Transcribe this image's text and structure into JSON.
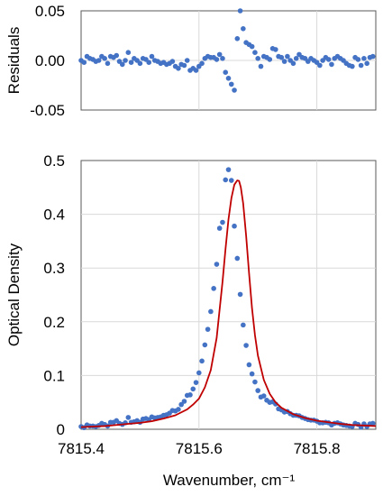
{
  "chart_data": [
    {
      "type": "scatter",
      "panel": "residuals",
      "title": "",
      "xlabel": "",
      "ylabel": "Residuals",
      "xlim": [
        7815.4,
        7815.9
      ],
      "ylim": [
        -0.05,
        0.05
      ],
      "xticks": [
        7815.4,
        7815.6,
        7815.8
      ],
      "yticks": [
        -0.05,
        0.0,
        0.05
      ],
      "ytick_labels": [
        "-0.05",
        "0.00",
        "0.05"
      ],
      "x_tick_labels_shown": false,
      "grid": "vertical",
      "colors": {
        "points": "#4472c4",
        "grid": "#d9d9d9",
        "frame": "#595959"
      },
      "series": [
        {
          "x": [
            7815.4,
            7815.405,
            7815.41,
            7815.415,
            7815.42,
            7815.425,
            7815.43,
            7815.435,
            7815.44,
            7815.445,
            7815.45,
            7815.455,
            7815.46,
            7815.465,
            7815.47,
            7815.475,
            7815.48,
            7815.485,
            7815.49,
            7815.495,
            7815.5,
            7815.505,
            7815.51,
            7815.515,
            7815.52,
            7815.525,
            7815.53,
            7815.535,
            7815.54,
            7815.545,
            7815.55,
            7815.555,
            7815.56,
            7815.565,
            7815.57,
            7815.575,
            7815.58,
            7815.585,
            7815.59,
            7815.595,
            7815.6,
            7815.605,
            7815.61,
            7815.615,
            7815.62,
            7815.625,
            7815.63,
            7815.635,
            7815.64,
            7815.645,
            7815.65,
            7815.655,
            7815.66,
            7815.665,
            7815.67,
            7815.675,
            7815.68,
            7815.685,
            7815.69,
            7815.695,
            7815.7,
            7815.705,
            7815.71,
            7815.715,
            7815.72,
            7815.725,
            7815.73,
            7815.735,
            7815.74,
            7815.745,
            7815.75,
            7815.755,
            7815.76,
            7815.765,
            7815.77,
            7815.775,
            7815.78,
            7815.785,
            7815.79,
            7815.795,
            7815.8,
            7815.805,
            7815.81,
            7815.815,
            7815.82,
            7815.825,
            7815.83,
            7815.835,
            7815.84,
            7815.845,
            7815.85,
            7815.855,
            7815.86,
            7815.865,
            7815.87,
            7815.875,
            7815.88,
            7815.885,
            7815.89,
            7815.895
          ],
          "y": [
            0.0,
            -0.002,
            0.004,
            0.002,
            0.001,
            -0.001,
            0.0,
            0.004,
            0.002,
            -0.003,
            0.004,
            0.003,
            0.005,
            -0.001,
            -0.004,
            0.0,
            0.008,
            -0.002,
            0.002,
            0.0,
            -0.003,
            0.002,
            0.001,
            -0.002,
            0.004,
            0.0,
            -0.001,
            -0.003,
            -0.002,
            -0.004,
            -0.003,
            -0.001,
            -0.006,
            -0.008,
            -0.004,
            -0.005,
            0.0,
            -0.01,
            -0.008,
            -0.01,
            -0.006,
            -0.003,
            0.002,
            0.004,
            0.003,
            0.003,
            0.001,
            0.006,
            0.002,
            -0.012,
            -0.018,
            -0.024,
            -0.03,
            0.022,
            0.05,
            0.032,
            0.018,
            0.016,
            0.014,
            0.008,
            0.002,
            -0.006,
            0.004,
            0.003,
            0.001,
            0.012,
            0.011,
            0.004,
            0.003,
            -0.001,
            0.004,
            0.0,
            -0.003,
            0.002,
            0.006,
            0.003,
            0.002,
            -0.001,
            0.002,
            0.0,
            -0.002,
            -0.005,
            0.0,
            0.003,
            0.001,
            -0.004,
            0.002,
            0.004,
            0.002,
            0.0,
            -0.003,
            -0.005,
            -0.006,
            0.003,
            0.001,
            -0.005,
            0.002,
            -0.003,
            0.003,
            0.004
          ]
        }
      ]
    },
    {
      "type": "scatter",
      "panel": "main",
      "title": "",
      "xlabel": "Wavenumber, cm⁻¹",
      "ylabel": "Optical Density",
      "xlim": [
        7815.4,
        7815.9
      ],
      "ylim": [
        0,
        0.5
      ],
      "xticks": [
        7815.4,
        7815.6,
        7815.8
      ],
      "xtick_labels": [
        "7815.4",
        "7815.6",
        "7815.8"
      ],
      "yticks": [
        0,
        0.1,
        0.2,
        0.3,
        0.4,
        0.5
      ],
      "ytick_labels": [
        "0",
        "0.1",
        "0.2",
        "0.3",
        "0.4",
        "0.5"
      ],
      "grid": "both",
      "colors": {
        "points": "#4472c4",
        "fit": "#c00000",
        "grid": "#d9d9d9",
        "frame": "#595959"
      },
      "series": [
        {
          "kind": "points",
          "x": [
            7815.4,
            7815.405,
            7815.41,
            7815.415,
            7815.42,
            7815.425,
            7815.43,
            7815.435,
            7815.44,
            7815.445,
            7815.45,
            7815.455,
            7815.46,
            7815.465,
            7815.47,
            7815.475,
            7815.48,
            7815.485,
            7815.49,
            7815.495,
            7815.5,
            7815.505,
            7815.51,
            7815.515,
            7815.52,
            7815.525,
            7815.53,
            7815.535,
            7815.54,
            7815.545,
            7815.55,
            7815.555,
            7815.56,
            7815.565,
            7815.57,
            7815.575,
            7815.58,
            7815.585,
            7815.59,
            7815.595,
            7815.6,
            7815.605,
            7815.61,
            7815.615,
            7815.62,
            7815.625,
            7815.63,
            7815.635,
            7815.64,
            7815.645,
            7815.65,
            7815.655,
            7815.66,
            7815.665,
            7815.67,
            7815.675,
            7815.68,
            7815.685,
            7815.69,
            7815.695,
            7815.7,
            7815.705,
            7815.71,
            7815.715,
            7815.72,
            7815.725,
            7815.73,
            7815.735,
            7815.74,
            7815.745,
            7815.75,
            7815.755,
            7815.76,
            7815.765,
            7815.77,
            7815.775,
            7815.78,
            7815.785,
            7815.79,
            7815.795,
            7815.8,
            7815.805,
            7815.81,
            7815.815,
            7815.82,
            7815.825,
            7815.83,
            7815.835,
            7815.84,
            7815.845,
            7815.85,
            7815.855,
            7815.86,
            7815.865,
            7815.87,
            7815.875,
            7815.88,
            7815.885,
            7815.89,
            7815.895
          ],
          "y": [
            0.005,
            0.003,
            0.008,
            0.006,
            0.006,
            0.005,
            0.007,
            0.011,
            0.009,
            0.006,
            0.013,
            0.013,
            0.016,
            0.011,
            0.009,
            0.012,
            0.022,
            0.013,
            0.014,
            0.016,
            0.013,
            0.019,
            0.02,
            0.018,
            0.023,
            0.021,
            0.022,
            0.023,
            0.026,
            0.027,
            0.03,
            0.035,
            0.034,
            0.037,
            0.046,
            0.052,
            0.063,
            0.064,
            0.075,
            0.087,
            0.105,
            0.127,
            0.157,
            0.186,
            0.219,
            0.262,
            0.307,
            0.374,
            0.385,
            0.464,
            0.483,
            0.463,
            0.378,
            0.318,
            0.251,
            0.194,
            0.156,
            0.12,
            0.103,
            0.088,
            0.072,
            0.06,
            0.062,
            0.054,
            0.05,
            0.051,
            0.047,
            0.038,
            0.036,
            0.032,
            0.033,
            0.029,
            0.026,
            0.026,
            0.025,
            0.022,
            0.02,
            0.018,
            0.017,
            0.017,
            0.015,
            0.012,
            0.012,
            0.013,
            0.012,
            0.008,
            0.011,
            0.012,
            0.01,
            0.008,
            0.007,
            0.006,
            0.005,
            0.011,
            0.009,
            0.004,
            0.01,
            0.005,
            0.01,
            0.011
          ]
        },
        {
          "kind": "fit-line",
          "x": [
            7815.4,
            7815.42,
            7815.44,
            7815.46,
            7815.48,
            7815.5,
            7815.52,
            7815.54,
            7815.56,
            7815.58,
            7815.59,
            7815.6,
            7815.61,
            7815.62,
            7815.63,
            7815.64,
            7815.645,
            7815.65,
            7815.655,
            7815.66,
            7815.665,
            7815.668,
            7815.671,
            7815.675,
            7815.68,
            7815.685,
            7815.69,
            7815.695,
            7815.7,
            7815.71,
            7815.72,
            7815.73,
            7815.74,
            7815.76,
            7815.78,
            7815.8,
            7815.82,
            7815.84,
            7815.86,
            7815.88,
            7815.9
          ],
          "y": [
            0.004,
            0.005,
            0.006,
            0.008,
            0.01,
            0.012,
            0.015,
            0.02,
            0.026,
            0.037,
            0.046,
            0.057,
            0.078,
            0.11,
            0.17,
            0.275,
            0.335,
            0.39,
            0.43,
            0.455,
            0.463,
            0.462,
            0.45,
            0.42,
            0.36,
            0.29,
            0.225,
            0.175,
            0.137,
            0.092,
            0.066,
            0.05,
            0.04,
            0.028,
            0.021,
            0.016,
            0.013,
            0.01,
            0.008,
            0.007,
            0.006
          ]
        }
      ]
    }
  ]
}
